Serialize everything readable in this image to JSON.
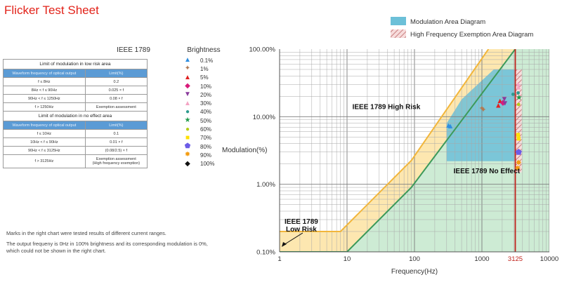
{
  "page_title": "Flicker Test Sheet",
  "standard_label": "IEEE 1789",
  "limits_table": {
    "low_risk": {
      "heading": "Limit of modulation in low risk area",
      "col_headers": [
        "Waveform frequency of optical output",
        "Limit(%)"
      ],
      "rows": [
        [
          "f ≤ 8Hz",
          "0.2"
        ],
        [
          "8Hz < f ≤ 90Hz",
          "0.025 × f"
        ],
        [
          "90Hz < f ≤ 1250Hz",
          "0.08 × f"
        ],
        [
          "f > 1250Hz",
          "Exemption assessment"
        ]
      ]
    },
    "no_effect": {
      "heading": "Limit of modulation in no effect area",
      "col_headers": [
        "Waveform frequency of optical output",
        "Limit(%)"
      ],
      "rows": [
        [
          "f ≤ 10Hz",
          "0.1"
        ],
        [
          "10Hz < f ≤ 90Hz",
          "0.01 × f"
        ],
        [
          "90Hz < f ≤ 3125Hz",
          "(0.08/2.5) × f"
        ],
        [
          "f > 3125Hz",
          "Exemption assessment\n(High frequency exemption)"
        ]
      ]
    }
  },
  "brightness_legend": {
    "title": "Brightness",
    "items": [
      {
        "label": "0.1%",
        "color": "#2f8ee0",
        "shape": "▲"
      },
      {
        "label": "1%",
        "color": "#b07a55",
        "shape": "✦"
      },
      {
        "label": "5%",
        "color": "#e02020",
        "shape": "▲"
      },
      {
        "label": "10%",
        "color": "#d81b7a",
        "shape": "◆"
      },
      {
        "label": "20%",
        "color": "#8a3b9c",
        "shape": "▼"
      },
      {
        "label": "30%",
        "color": "#f4a4c4",
        "shape": "▲"
      },
      {
        "label": "40%",
        "color": "#2e9b8f",
        "shape": "●"
      },
      {
        "label": "50%",
        "color": "#1f9a4a",
        "shape": "★"
      },
      {
        "label": "60%",
        "color": "#b5cc18",
        "shape": "●"
      },
      {
        "label": "70%",
        "color": "#ffe100",
        "shape": "■"
      },
      {
        "label": "80%",
        "color": "#6c5ce7",
        "shape": "⬟"
      },
      {
        "label": "90%",
        "color": "#f39c12",
        "shape": "✸"
      },
      {
        "label": "100%",
        "color": "#111111",
        "shape": "◆"
      }
    ]
  },
  "notes": [
    "Marks in the right chart were tested results of different current ranges.",
    "The output frequeny is 0Hz in 100% brightness and its corresponding modulation is 0%, which could not be shown in the right chart."
  ],
  "chart_data": {
    "type": "scatter",
    "xlabel": "Frequency(Hz)",
    "ylabel": "Modulation(%)",
    "x_scale": "log",
    "y_scale": "log",
    "xlim": [
      1,
      10000
    ],
    "ylim": [
      0.1,
      100
    ],
    "x_tick_labels": [
      {
        "value": 1,
        "label": "1"
      },
      {
        "value": 10,
        "label": "10"
      },
      {
        "value": 100,
        "label": "100"
      },
      {
        "value": 1000,
        "label": "1000"
      },
      {
        "value": 3125,
        "label": "3125"
      },
      {
        "value": 10000,
        "label": "10000"
      }
    ],
    "y_tick_labels": [
      {
        "value": 0.1,
        "label": "0.10%"
      },
      {
        "value": 1,
        "label": "1.00%"
      },
      {
        "value": 10,
        "label": "10.00%"
      },
      {
        "value": 100,
        "label": "100.00%"
      }
    ],
    "grid": true,
    "legend": {
      "placement": "top-right",
      "items": [
        {
          "label": "Modulation Area Diagram",
          "color": "#6cc0d8"
        },
        {
          "label": "High Frequency Exemption Area Diagram",
          "color": "#e8a0a0",
          "pattern": "hatch"
        }
      ]
    },
    "region_labels": [
      {
        "text": "IEEE 1789 High Risk",
        "x": 12,
        "y": 13
      },
      {
        "text": "IEEE 1789 No Effect",
        "x": 380,
        "y": 1.45
      },
      {
        "text": "IEEE 1789\nLow Risk",
        "x": 2.1,
        "y": 0.26
      }
    ],
    "exemption_line_x": 3125,
    "low_risk_limit": [
      [
        1,
        0.2
      ],
      [
        8,
        0.2
      ],
      [
        90,
        2.25
      ],
      [
        1250,
        100
      ]
    ],
    "no_effect_limit": [
      [
        1,
        0.1
      ],
      [
        10,
        0.1
      ],
      [
        90,
        0.9
      ],
      [
        3125,
        100
      ]
    ],
    "modulation_area": [
      [
        300,
        2.2
      ],
      [
        300,
        8
      ],
      [
        500,
        18
      ],
      [
        1500,
        50
      ],
      [
        3100,
        50
      ],
      [
        3100,
        2.2
      ]
    ],
    "exemption_area": [
      [
        3125,
        1.5
      ],
      [
        3125,
        50
      ],
      [
        3900,
        50
      ],
      [
        3900,
        1.5
      ]
    ],
    "series": [
      {
        "name": "0.1%",
        "points": [
          [
            320,
            7.6
          ],
          [
            340,
            7.4
          ]
        ]
      },
      {
        "name": "1%",
        "points": [
          [
            1000,
            13.5
          ],
          [
            1050,
            12.8
          ]
        ]
      },
      {
        "name": "5%",
        "points": [
          [
            1750,
            15.0
          ],
          [
            1850,
            17.5
          ]
        ]
      },
      {
        "name": "10%",
        "points": [
          [
            2050,
            16.5
          ]
        ]
      },
      {
        "name": "20%",
        "points": [
          [
            2150,
            18.5
          ],
          [
            2200,
            16.0
          ]
        ]
      },
      {
        "name": "30%",
        "points": [
          [
            3450,
            31
          ],
          [
            3480,
            28
          ]
        ]
      },
      {
        "name": "40%",
        "points": [
          [
            2900,
            22
          ],
          [
            3450,
            23
          ]
        ]
      },
      {
        "name": "50%",
        "points": [
          [
            3550,
            19.5
          ]
        ]
      },
      {
        "name": "60%",
        "points": [
          [
            3500,
            15.5
          ]
        ]
      },
      {
        "name": "70%",
        "points": [
          [
            3450,
            5.5
          ],
          [
            3500,
            4.8
          ]
        ]
      },
      {
        "name": "80%",
        "points": [
          [
            3500,
            3.0
          ]
        ]
      },
      {
        "name": "90%",
        "points": [
          [
            3500,
            2.1
          ],
          [
            3400,
            1.75
          ]
        ]
      },
      {
        "name": "100%",
        "points": []
      }
    ]
  }
}
